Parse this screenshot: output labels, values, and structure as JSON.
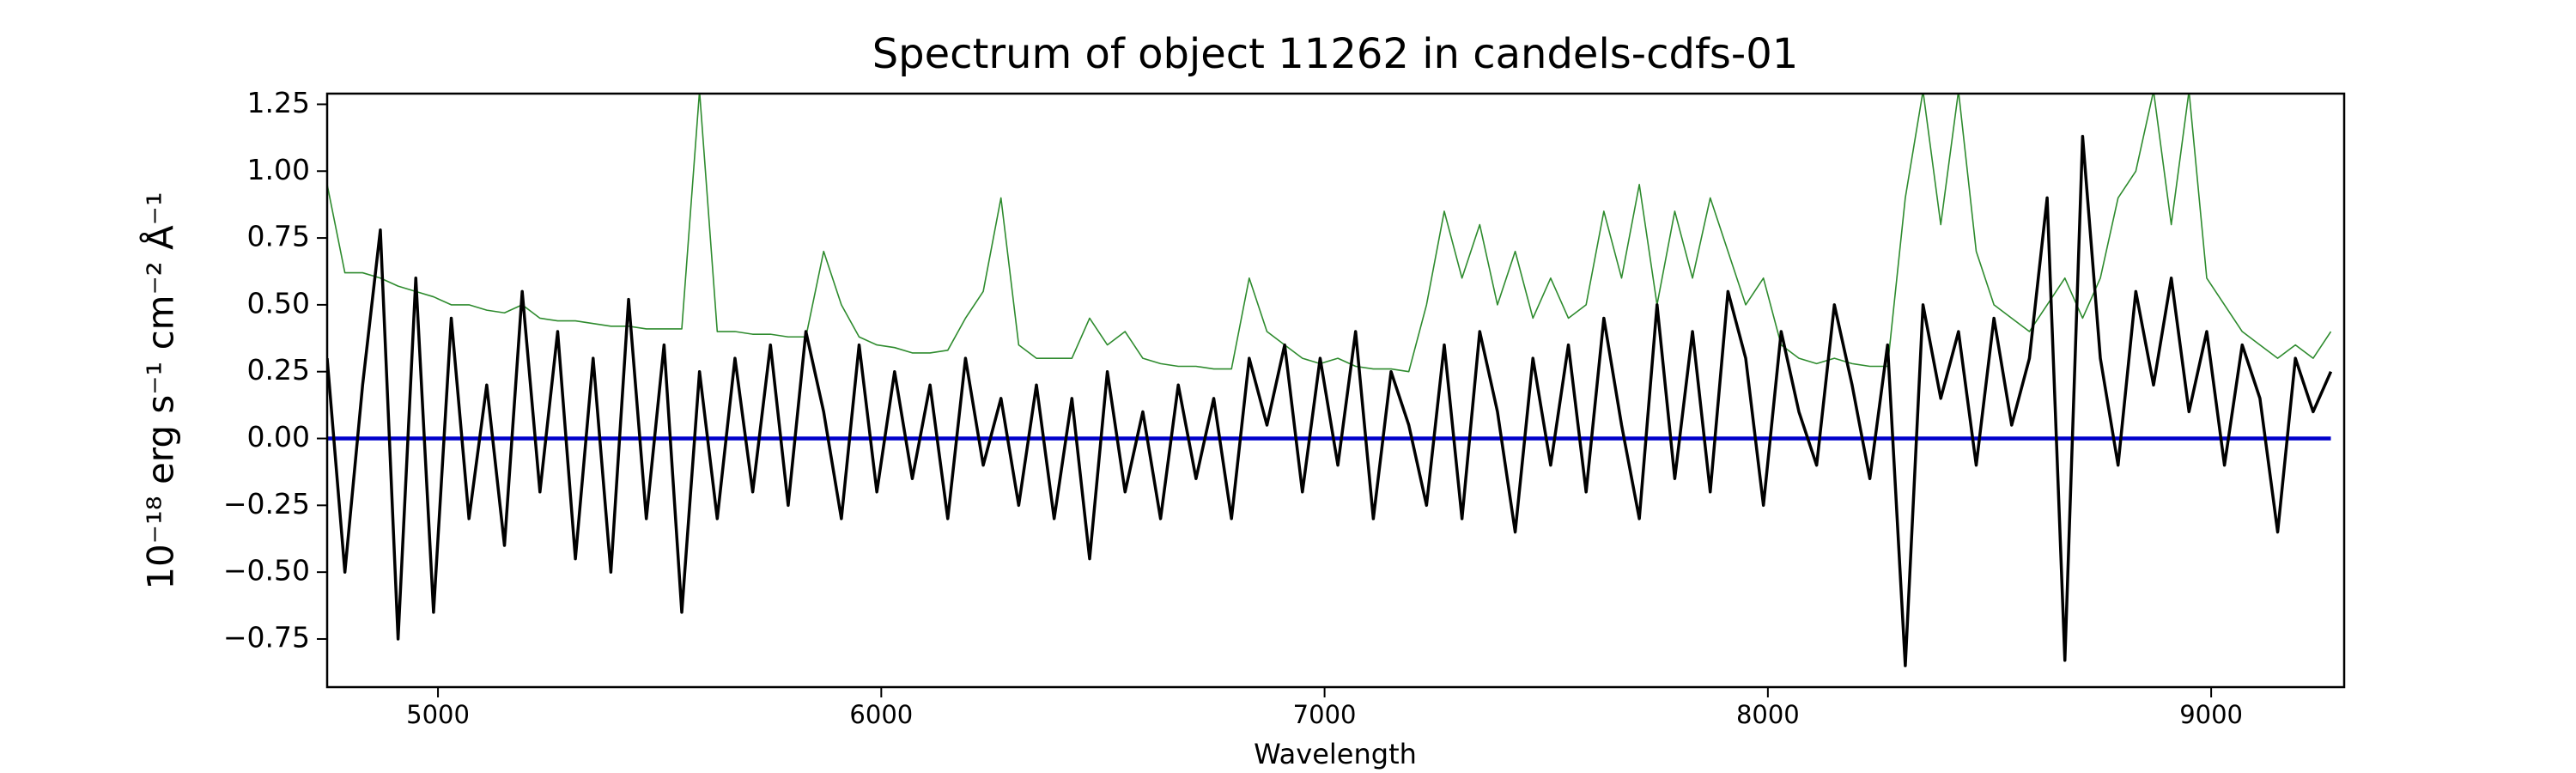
{
  "chart_data": {
    "type": "line",
    "title": "Spectrum of object 11262 in candels-cdfs-01",
    "xlabel": "Wavelength",
    "ylabel": "10⁻¹⁸ erg s⁻¹ cm⁻² Å⁻¹",
    "xlim": [
      4750,
      9300
    ],
    "ylim": [
      -0.93,
      1.29
    ],
    "xticks": [
      5000,
      6000,
      7000,
      8000,
      9000
    ],
    "yticks": [
      {
        "value": -0.75,
        "label": "−0.75"
      },
      {
        "value": -0.5,
        "label": "−0.50"
      },
      {
        "value": -0.25,
        "label": "−0.25"
      },
      {
        "value": 0,
        "label": "0.00"
      },
      0.25,
      {
        "value": 0.5,
        "label": "0.50"
      },
      0.75,
      {
        "value": 1,
        "label": "1.00"
      },
      1.25
    ],
    "grid": false,
    "x": [
      4750,
      4790,
      4830,
      4870,
      4910,
      4950,
      4990,
      5030,
      5070,
      5110,
      5150,
      5190,
      5230,
      5270,
      5310,
      5350,
      5390,
      5430,
      5470,
      5510,
      5550,
      5590,
      5630,
      5670,
      5710,
      5750,
      5790,
      5830,
      5870,
      5910,
      5950,
      5990,
      6030,
      6070,
      6110,
      6150,
      6190,
      6230,
      6270,
      6310,
      6350,
      6390,
      6430,
      6470,
      6510,
      6550,
      6590,
      6630,
      6670,
      6710,
      6750,
      6790,
      6830,
      6870,
      6910,
      6950,
      6990,
      7030,
      7070,
      7110,
      7150,
      7190,
      7230,
      7270,
      7310,
      7350,
      7390,
      7430,
      7470,
      7510,
      7550,
      7590,
      7630,
      7670,
      7710,
      7750,
      7790,
      7830,
      7870,
      7910,
      7950,
      7990,
      8030,
      8070,
      8110,
      8150,
      8190,
      8230,
      8270,
      8310,
      8350,
      8390,
      8430,
      8470,
      8510,
      8550,
      8590,
      8630,
      8670,
      8710,
      8750,
      8790,
      8830,
      8870,
      8910,
      8950,
      8990,
      9030,
      9070,
      9110,
      9150,
      9190,
      9230,
      9270
    ],
    "series": [
      {
        "color": "#2e8b2e",
        "width": 1.6,
        "values": [
          0.95,
          0.62,
          0.62,
          0.6,
          0.57,
          0.55,
          0.53,
          0.5,
          0.5,
          0.48,
          0.47,
          0.5,
          0.45,
          0.44,
          0.44,
          0.43,
          0.42,
          0.42,
          0.41,
          0.41,
          0.41,
          1.3,
          0.4,
          0.4,
          0.39,
          0.39,
          0.38,
          0.38,
          0.7,
          0.5,
          0.38,
          0.35,
          0.34,
          0.32,
          0.32,
          0.33,
          0.45,
          0.55,
          0.9,
          0.35,
          0.3,
          0.3,
          0.3,
          0.45,
          0.35,
          0.4,
          0.3,
          0.28,
          0.27,
          0.27,
          0.26,
          0.26,
          0.6,
          0.4,
          0.35,
          0.3,
          0.28,
          0.3,
          0.27,
          0.26,
          0.26,
          0.25,
          0.5,
          0.85,
          0.6,
          0.8,
          0.5,
          0.7,
          0.45,
          0.6,
          0.45,
          0.5,
          0.85,
          0.6,
          0.95,
          0.5,
          0.85,
          0.6,
          0.9,
          0.7,
          0.5,
          0.6,
          0.35,
          0.3,
          0.28,
          0.3,
          0.28,
          0.27,
          0.27,
          0.9,
          1.3,
          0.8,
          1.3,
          0.7,
          0.5,
          0.45,
          0.4,
          0.5,
          0.6,
          0.45,
          0.6,
          0.9,
          1.0,
          1.3,
          0.8,
          1.3,
          0.6,
          0.5,
          0.4,
          0.35,
          0.3,
          0.35,
          0.3,
          0.4
        ]
      },
      {
        "color": "#0000cc",
        "width": 4.5,
        "values": [
          0,
          0,
          0,
          0,
          0,
          0,
          0,
          0,
          0,
          0,
          0,
          0,
          0,
          0,
          0,
          0,
          0,
          0,
          0,
          0,
          0,
          0,
          0,
          0,
          0,
          0,
          0,
          0,
          0,
          0,
          0,
          0,
          0,
          0,
          0,
          0,
          0,
          0,
          0,
          0,
          0,
          0,
          0,
          0,
          0,
          0,
          0,
          0,
          0,
          0,
          0,
          0,
          0,
          0,
          0,
          0,
          0,
          0,
          0,
          0,
          0,
          0,
          0,
          0,
          0,
          0,
          0,
          0,
          0,
          0,
          0,
          0,
          0,
          0,
          0,
          0,
          0,
          0,
          0,
          0,
          0,
          0,
          0,
          0,
          0,
          0,
          0,
          0,
          0,
          0,
          0,
          0,
          0,
          0,
          0,
          0,
          0,
          0,
          0,
          0,
          0,
          0,
          0,
          0,
          0,
          0,
          0,
          0,
          0,
          0,
          0,
          0,
          0,
          0
        ]
      },
      {
        "color": "#000000",
        "width": 3.5,
        "values": [
          0.3,
          -0.5,
          0.2,
          0.78,
          -0.75,
          0.6,
          -0.65,
          0.45,
          -0.3,
          0.2,
          -0.4,
          0.55,
          -0.2,
          0.4,
          -0.45,
          0.3,
          -0.5,
          0.52,
          -0.3,
          0.35,
          -0.65,
          0.25,
          -0.3,
          0.3,
          -0.2,
          0.35,
          -0.25,
          0.4,
          0.1,
          -0.3,
          0.35,
          -0.2,
          0.25,
          -0.15,
          0.2,
          -0.3,
          0.3,
          -0.1,
          0.15,
          -0.25,
          0.2,
          -0.3,
          0.15,
          -0.45,
          0.25,
          -0.2,
          0.1,
          -0.3,
          0.2,
          -0.15,
          0.15,
          -0.3,
          0.3,
          0.05,
          0.35,
          -0.2,
          0.3,
          -0.1,
          0.4,
          -0.3,
          0.25,
          0.05,
          -0.25,
          0.35,
          -0.3,
          0.4,
          0.1,
          -0.35,
          0.3,
          -0.1,
          0.35,
          -0.2,
          0.45,
          0.05,
          -0.3,
          0.5,
          -0.15,
          0.4,
          -0.2,
          0.55,
          0.3,
          -0.25,
          0.4,
          0.1,
          -0.1,
          0.5,
          0.2,
          -0.15,
          0.35,
          -0.85,
          0.5,
          0.15,
          0.4,
          -0.1,
          0.45,
          0.05,
          0.3,
          0.9,
          -0.83,
          1.13,
          0.3,
          -0.1,
          0.55,
          0.2,
          0.6,
          0.1,
          0.4,
          -0.1,
          0.35,
          0.15,
          -0.35,
          0.3,
          0.1,
          0.25
        ]
      }
    ]
  }
}
